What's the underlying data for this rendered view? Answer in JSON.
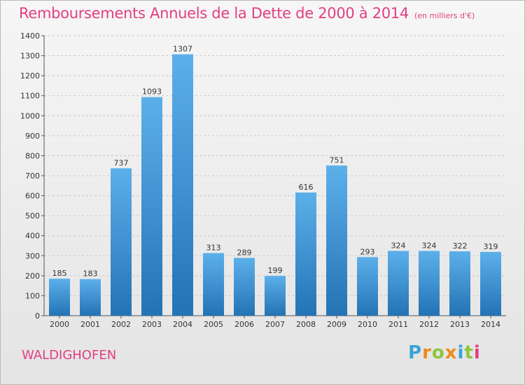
{
  "header": {
    "title": "Remboursements Annuels de la Dette de 2000 à 2014",
    "subtitle": "(en milliers d'€)"
  },
  "footer": {
    "town": "WALDIGHOFEN",
    "brand": {
      "text": "Proxiti",
      "letters": [
        {
          "ch": "P",
          "color": "#3aa3d8"
        },
        {
          "ch": "r",
          "color": "#f08a1c"
        },
        {
          "ch": "o",
          "color": "#8cc63e"
        },
        {
          "ch": "x",
          "color": "#f08a1c"
        },
        {
          "ch": "i",
          "color": "#3aa3d8"
        },
        {
          "ch": "t",
          "color": "#8cc63e"
        },
        {
          "ch": "i",
          "color": "#e23f81"
        }
      ]
    }
  },
  "colors": {
    "accent": "#e23f81",
    "bar_top": "#5cb0ea",
    "bar_bottom": "#2373b5"
  },
  "chart_data": {
    "type": "bar",
    "categories": [
      "2000",
      "2001",
      "2002",
      "2003",
      "2004",
      "2005",
      "2006",
      "2007",
      "2008",
      "2009",
      "2010",
      "2011",
      "2012",
      "2013",
      "2014"
    ],
    "values": [
      185,
      183,
      737,
      1093,
      1307,
      313,
      289,
      199,
      616,
      751,
      293,
      324,
      324,
      322,
      319
    ],
    "title": "Remboursements Annuels de la Dette de 2000 à 2014",
    "subtitle": "(en milliers d'€)",
    "xlabel": "",
    "ylabel": "",
    "ylim": [
      0,
      1400
    ],
    "yticks": [
      0,
      100,
      200,
      300,
      400,
      500,
      600,
      700,
      800,
      900,
      1000,
      1100,
      1200,
      1300,
      1400
    ],
    "grid": true,
    "legend": "none"
  }
}
